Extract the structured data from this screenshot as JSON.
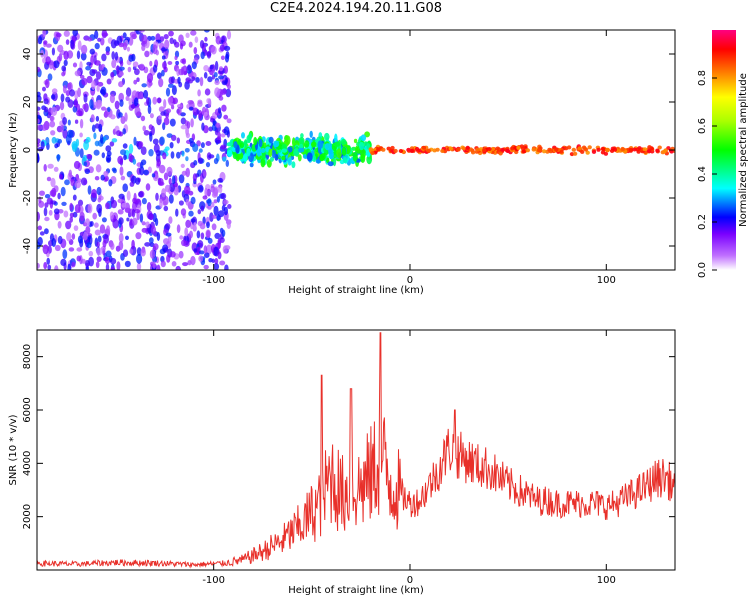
{
  "title": "C2E4.2024.194.20.11.G08",
  "chart_data": [
    {
      "type": "heatmap",
      "xlabel": "Height of straight line (km)",
      "ylabel": "Frequency (Hz)",
      "xlim": [
        -190,
        135
      ],
      "ylim": [
        -50,
        50
      ],
      "x_ticks": [
        -100,
        0,
        100
      ],
      "y_ticks": [
        -40,
        -20,
        0,
        20,
        40
      ],
      "colorbar": {
        "label": "Normalized spectral amplitude",
        "range": [
          0.0,
          1.0
        ],
        "ticks": [
          "0.0",
          "0.2",
          "0.4",
          "0.6",
          "0.8"
        ],
        "tick_values": [
          0.0,
          0.2,
          0.4,
          0.6,
          0.8
        ]
      },
      "regions": [
        {
          "x": [
            -190,
            -92
          ],
          "freq_spread": 50,
          "amplitude": [
            0.05,
            0.25
          ],
          "note": "broadband noise"
        },
        {
          "x": [
            -92,
            -20
          ],
          "freq_center": 0,
          "freq_spread": 8,
          "amplitude": [
            0.25,
            0.55
          ]
        },
        {
          "x": [
            -20,
            135
          ],
          "freq_center": 0,
          "freq_spread": 2,
          "amplitude": [
            0.8,
            0.95
          ]
        }
      ],
      "grid": false
    },
    {
      "type": "line",
      "xlabel": "Height of straight line (km)",
      "ylabel": "SNR (10 * v/v)",
      "xlim": [
        -190,
        135
      ],
      "ylim": [
        0,
        9000
      ],
      "x_ticks": [
        -100,
        0,
        100
      ],
      "y_ticks": [
        2000,
        4000,
        6000,
        8000
      ],
      "color": "#e8302a",
      "series": [
        {
          "x": [
            -190,
            -170,
            -150,
            -130,
            -110,
            -95,
            -85,
            -75,
            -65,
            -55,
            -45,
            -40,
            -35,
            -30,
            -25,
            -20,
            -15,
            -10,
            -5,
            0,
            5,
            10,
            15,
            20,
            25,
            30,
            35,
            40,
            45,
            50,
            55,
            60,
            65,
            70,
            75,
            80,
            85,
            90,
            95,
            100,
            105,
            110,
            115,
            120,
            125,
            130,
            135
          ],
          "values": [
            250,
            220,
            280,
            260,
            200,
            250,
            380,
            700,
            1100,
            1700,
            2600,
            3600,
            2800,
            3000,
            3100,
            3500,
            4300,
            3300,
            2900,
            2500,
            2600,
            3200,
            3800,
            4600,
            4300,
            4100,
            3900,
            3800,
            3500,
            3200,
            3000,
            2800,
            2600,
            2600,
            2500,
            2500,
            2500,
            2500,
            2500,
            2400,
            2500,
            2700,
            2900,
            3100,
            3400,
            3500,
            3100
          ]
        }
      ],
      "peaks": [
        {
          "x": -45,
          "value": 7300
        },
        {
          "x": -30,
          "value": 6800
        },
        {
          "x": -15,
          "value": 8900
        },
        {
          "x": 23,
          "value": 6000
        }
      ],
      "grid": false
    }
  ]
}
